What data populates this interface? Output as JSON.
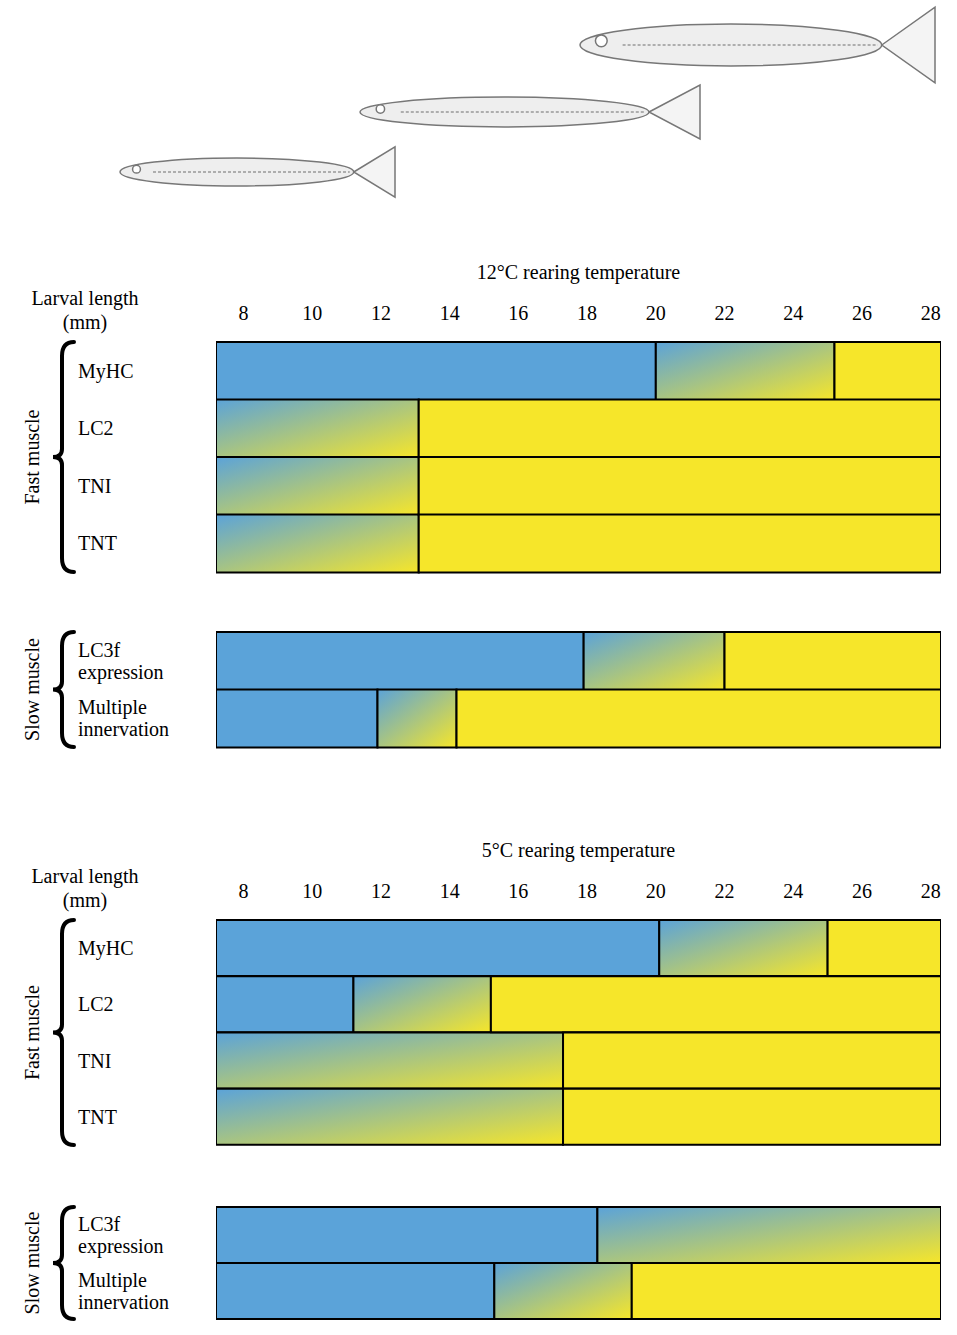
{
  "chart_data": [
    {
      "type": "bar",
      "orientation": "horizontal",
      "title": "12°C rearing temperature",
      "xlabel": "Larval length (mm)",
      "xlim": [
        7.2,
        28.3
      ],
      "xticks": [
        8,
        10,
        12,
        14,
        16,
        18,
        20,
        22,
        24,
        26,
        28
      ],
      "colors": [
        "#5ba3d9",
        "#f6e62a"
      ],
      "groups": [
        {
          "name": "Fast muscle",
          "rows": [
            {
              "label": "MyHC",
              "before": [
                7.2,
                20
              ],
              "transition": [
                20,
                25.2
              ],
              "after": [
                25.2,
                28.3
              ]
            },
            {
              "label": "LC2",
              "transition": [
                7.2,
                13.1
              ],
              "after": [
                13.1,
                28.3
              ]
            },
            {
              "label": "TNI",
              "transition": [
                7.2,
                13.1
              ],
              "after": [
                13.1,
                28.3
              ]
            },
            {
              "label": "TNT",
              "transition": [
                7.2,
                13.1
              ],
              "after": [
                13.1,
                28.3
              ]
            }
          ]
        },
        {
          "name": "Slow muscle",
          "rows": [
            {
              "label": "LC3f expression",
              "before": [
                7.2,
                17.9
              ],
              "transition": [
                17.9,
                22
              ],
              "after": [
                22,
                28.3
              ]
            },
            {
              "label": "Multiple innervation",
              "before": [
                7.2,
                11.9
              ],
              "transition": [
                11.9,
                14.2
              ],
              "after": [
                14.2,
                28.3
              ]
            }
          ]
        }
      ]
    },
    {
      "type": "bar",
      "orientation": "horizontal",
      "title": "5°C rearing temperature",
      "xlabel": "Larval length (mm)",
      "xlim": [
        7.2,
        28.3
      ],
      "xticks": [
        8,
        10,
        12,
        14,
        16,
        18,
        20,
        22,
        24,
        26,
        28
      ],
      "colors": [
        "#5ba3d9",
        "#f6e62a"
      ],
      "groups": [
        {
          "name": "Fast muscle",
          "rows": [
            {
              "label": "MyHC",
              "before": [
                7.2,
                20.1
              ],
              "transition": [
                20.1,
                25
              ],
              "after": [
                25,
                28.3
              ]
            },
            {
              "label": "LC2",
              "before": [
                7.2,
                11.2
              ],
              "transition": [
                11.2,
                15.2
              ],
              "after": [
                15.2,
                28.3
              ]
            },
            {
              "label": "TNI",
              "transition": [
                7.2,
                17.3
              ],
              "after": [
                17.3,
                28.3
              ]
            },
            {
              "label": "TNT",
              "transition": [
                7.2,
                17.3
              ],
              "after": [
                17.3,
                28.3
              ]
            }
          ]
        },
        {
          "name": "Slow muscle",
          "rows": [
            {
              "label": "LC3f expression",
              "before": [
                7.2,
                18.3
              ],
              "transition": [
                18.3,
                28.3
              ]
            },
            {
              "label": "Multiple innervation",
              "before": [
                7.2,
                15.3
              ],
              "transition": [
                15.3,
                19.3
              ],
              "after": [
                19.3,
                28.3
              ]
            }
          ]
        }
      ]
    }
  ]
}
